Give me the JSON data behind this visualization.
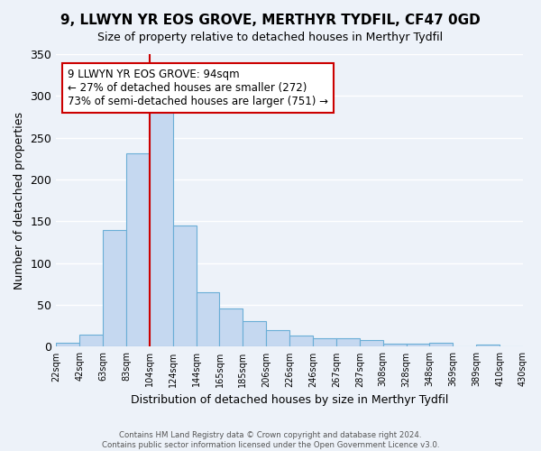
{
  "title": "9, LLWYN YR EOS GROVE, MERTHYR TYDFIL, CF47 0GD",
  "subtitle": "Size of property relative to detached houses in Merthyr Tydfil",
  "xlabel": "Distribution of detached houses by size in Merthyr Tydfil",
  "ylabel": "Number of detached properties",
  "bin_labels": [
    "22sqm",
    "42sqm",
    "63sqm",
    "83sqm",
    "104sqm",
    "124sqm",
    "144sqm",
    "165sqm",
    "185sqm",
    "206sqm",
    "226sqm",
    "246sqm",
    "267sqm",
    "287sqm",
    "308sqm",
    "328sqm",
    "348sqm",
    "369sqm",
    "389sqm",
    "410sqm",
    "430sqm"
  ],
  "bar_values": [
    5,
    14,
    140,
    231,
    287,
    145,
    65,
    46,
    31,
    20,
    13,
    10,
    10,
    8,
    4,
    4,
    5,
    1,
    3,
    1
  ],
  "bar_color": "#c5d8f0",
  "bar_edge_color": "#6aaed6",
  "vline_x": 3.5,
  "vline_color": "#cc0000",
  "ylim": [
    0,
    350
  ],
  "yticks": [
    0,
    50,
    100,
    150,
    200,
    250,
    300,
    350
  ],
  "annotation_title": "9 LLWYN YR EOS GROVE: 94sqm",
  "annotation_line1": "← 27% of detached houses are smaller (272)",
  "annotation_line2": "73% of semi-detached houses are larger (751) →",
  "annotation_box_color": "#ffffff",
  "annotation_box_edge_color": "#cc0000",
  "footer_line1": "Contains HM Land Registry data © Crown copyright and database right 2024.",
  "footer_line2": "Contains public sector information licensed under the Open Government Licence v3.0.",
  "background_color": "#edf2f9",
  "plot_background_color": "#edf2f9"
}
